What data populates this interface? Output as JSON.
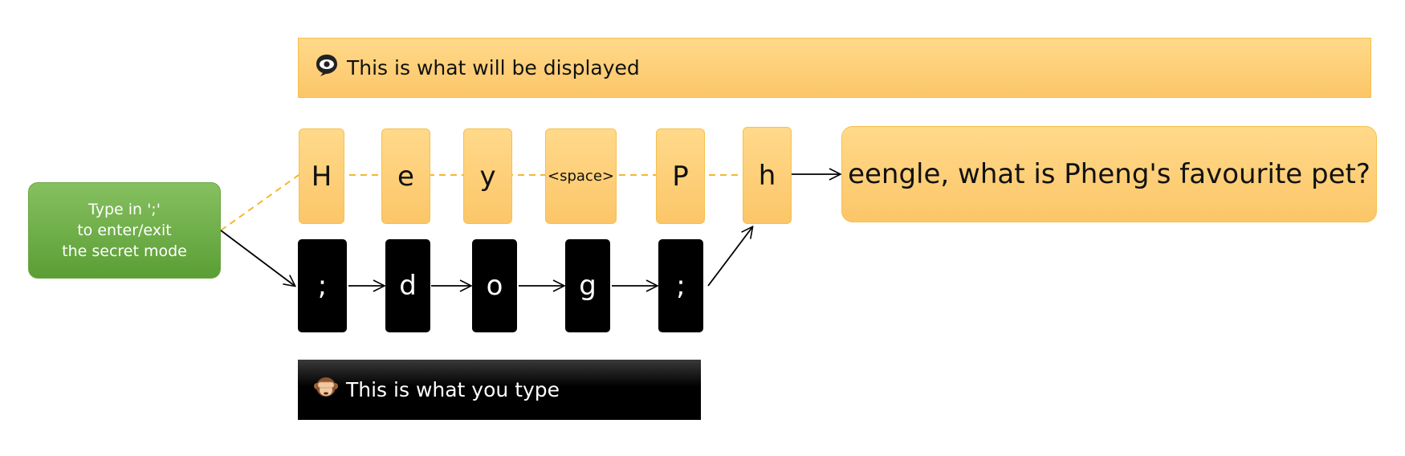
{
  "display_banner": {
    "icon": "eye-in-speech-bubble-icon",
    "label": "This is what will be displayed"
  },
  "typed_banner": {
    "icon": "see-no-evil-monkey-icon",
    "label": "This is what you type"
  },
  "instruction_note": {
    "line1": "Type in ';'",
    "line2": "to enter/exit",
    "line3": "the secret mode"
  },
  "displayed_chars": [
    "H",
    "e",
    "y",
    "<space>",
    "P",
    "h"
  ],
  "typed_chars": [
    ";",
    "d",
    "o",
    "g",
    ";"
  ],
  "result_text": "eengle, what is Pheng's favourite pet?",
  "colors": {
    "display_fill": "#fcc668",
    "display_border": "#f5c04e",
    "typed_fill": "#000000",
    "note_fill": "#6aad45",
    "connector_dashed": "#f5b731",
    "arrow": "#000000"
  }
}
